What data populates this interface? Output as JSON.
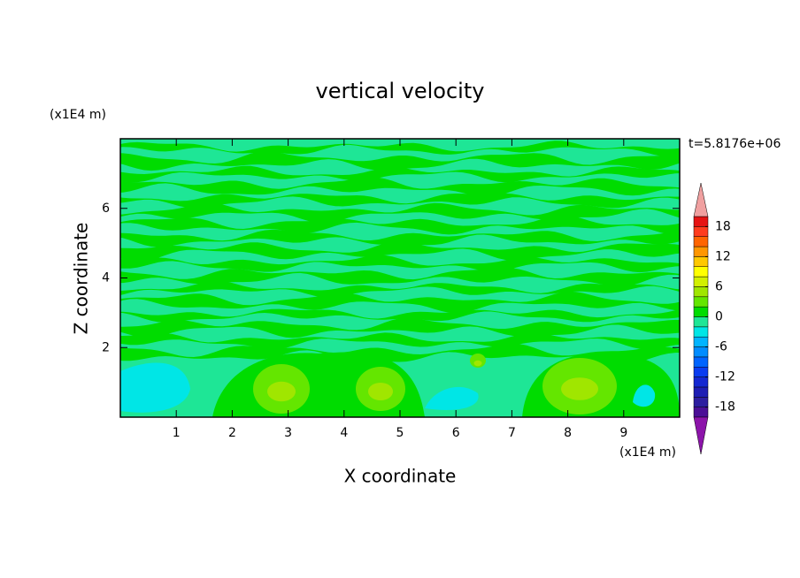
{
  "chart_data": {
    "type": "contour",
    "title": "vertical velocity",
    "xlabel": "X coordinate",
    "ylabel": "Z coordinate",
    "x_unit": "(x1E4 m)",
    "y_unit": "(x1E4 m)",
    "annotation": "t=5.8176e+06",
    "xlim": [
      0,
      10
    ],
    "ylim": [
      0,
      8
    ],
    "xticks": [
      1,
      2,
      3,
      4,
      5,
      6,
      7,
      8,
      9
    ],
    "yticks": [
      2,
      4,
      6
    ],
    "colorbar": {
      "clim": [
        -20,
        20
      ],
      "ticks": [
        -18,
        -12,
        -6,
        0,
        6,
        12,
        18
      ],
      "colors": [
        "#4b0f96",
        "#2d1ea0",
        "#1e1eb4",
        "#1428d2",
        "#0a3cf0",
        "#0064ff",
        "#008cff",
        "#00b4ff",
        "#00e6e6",
        "#1ee696",
        "#00dc00",
        "#64e600",
        "#a0e600",
        "#d2f000",
        "#ffff00",
        "#ffc800",
        "#ff9600",
        "#ff6400",
        "#ff3c1e",
        "#e61414"
      ],
      "over_color": "#f0a0a0",
      "under_color": "#8c14aa"
    }
  }
}
